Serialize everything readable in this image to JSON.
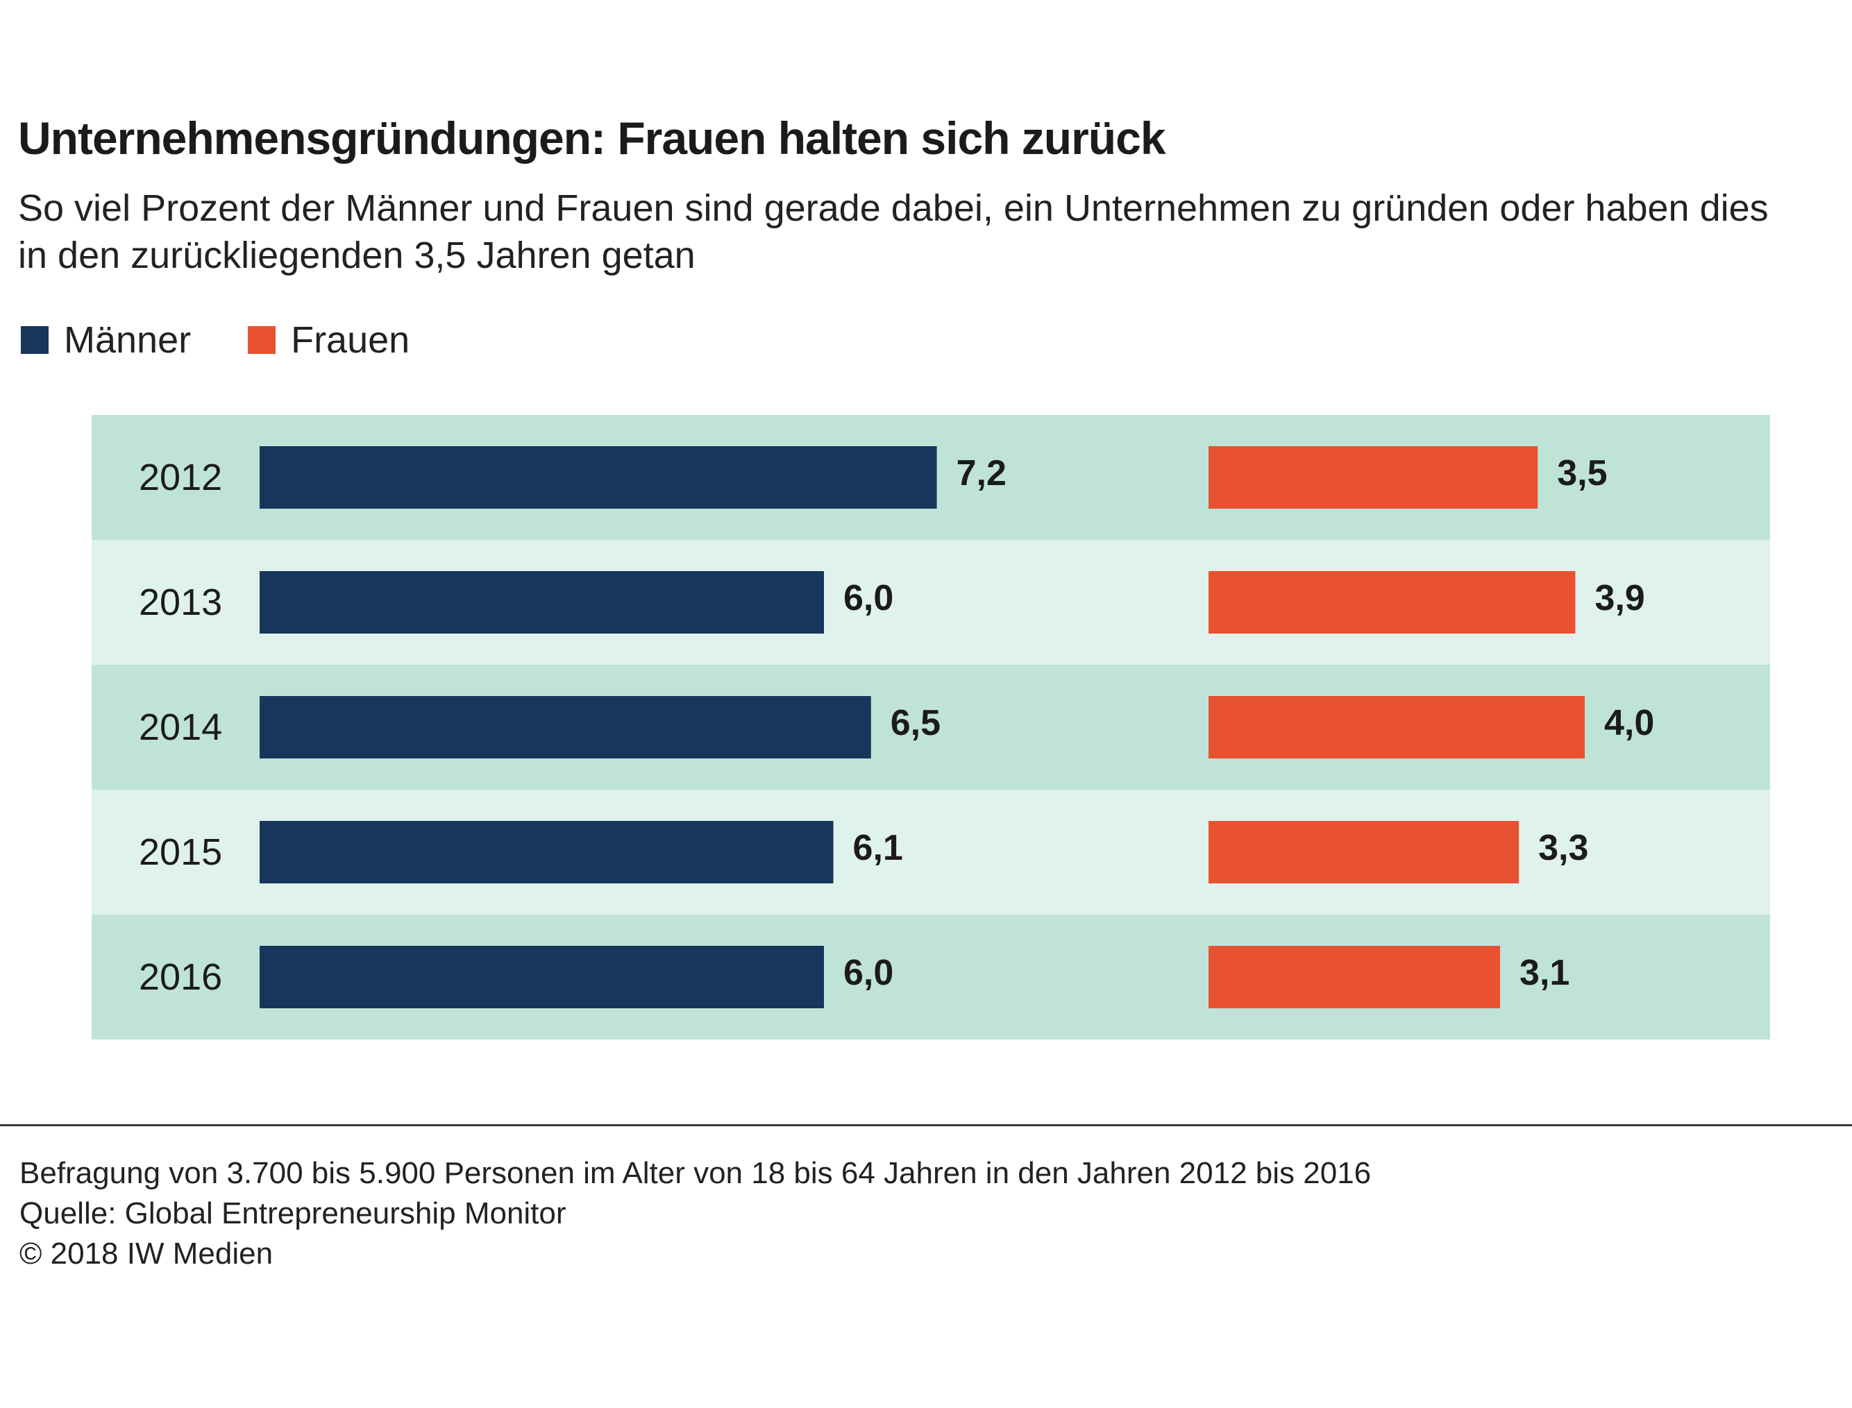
{
  "header": {
    "title": "Unternehmensgründungen: Frauen halten sich zurück",
    "subtitle": "So viel Prozent der Männer und Frauen sind gerade dabei, ein Unternehmen zu gründen oder haben dies in den zurückliegenden 3,5 Jahren getan"
  },
  "colors": {
    "men": "#17365c",
    "women": "#e85230",
    "row_dark": "#c0e3d8",
    "row_light": "#e0f2ec",
    "text": "#1b1b1b"
  },
  "chart_data": {
    "type": "bar",
    "orientation": "horizontal",
    "categories": [
      "2012",
      "2013",
      "2014",
      "2015",
      "2016"
    ],
    "series": [
      {
        "name": "Männer",
        "values": [
          7.2,
          6.0,
          6.5,
          6.1,
          6.0
        ],
        "labels": [
          "7,2",
          "6,0",
          "6,5",
          "6,1",
          "6,0"
        ]
      },
      {
        "name": "Frauen",
        "values": [
          3.5,
          3.9,
          4.0,
          3.3,
          3.1
        ],
        "labels": [
          "3,5",
          "3,9",
          "4,0",
          "3,3",
          "3,1"
        ]
      }
    ],
    "title": "Unternehmensgründungen: Frauen halten sich zurück",
    "unit": "Prozent",
    "legend_position": "top-left",
    "grid": false
  },
  "footer": {
    "note": "Befragung von 3.700 bis 5.900 Personen im Alter von 18 bis 64 Jahren in den Jahren 2012 bis 2016",
    "source": "Quelle: Global Entrepreneurship Monitor",
    "copyright": "© 2018 IW Medien"
  }
}
